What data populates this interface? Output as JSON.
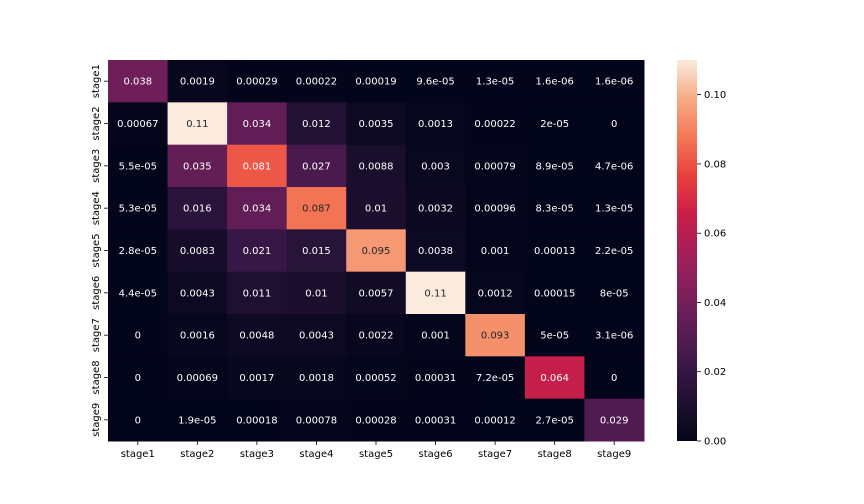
{
  "chart_data": {
    "type": "heatmap",
    "title": "",
    "xlabel": "",
    "ylabel": "",
    "x_labels": [
      "stage1",
      "stage2",
      "stage3",
      "stage4",
      "stage5",
      "stage6",
      "stage7",
      "stage8",
      "stage9"
    ],
    "y_labels": [
      "stage1",
      "stage2",
      "stage3",
      "stage4",
      "stage5",
      "stage6",
      "stage7",
      "stage8",
      "stage9"
    ],
    "values": [
      [
        0.038,
        0.0019,
        0.00029,
        0.00022,
        0.00019,
        9.6e-05,
        1.3e-05,
        1.6e-06,
        1.6e-06
      ],
      [
        0.00067,
        0.11,
        0.034,
        0.012,
        0.0035,
        0.0013,
        0.00022,
        2e-05,
        0
      ],
      [
        5.5e-05,
        0.035,
        0.081,
        0.027,
        0.0088,
        0.003,
        0.00079,
        8.9e-05,
        4.7e-06
      ],
      [
        5.3e-05,
        0.016,
        0.034,
        0.087,
        0.01,
        0.0032,
        0.00096,
        8.3e-05,
        1.3e-05
      ],
      [
        2.8e-05,
        0.0083,
        0.021,
        0.015,
        0.095,
        0.0038,
        0.001,
        0.00013,
        2.2e-05
      ],
      [
        4.4e-05,
        0.0043,
        0.011,
        0.01,
        0.0057,
        0.11,
        0.0012,
        0.00015,
        8e-05
      ],
      [
        0,
        0.0016,
        0.0048,
        0.0043,
        0.0022,
        0.001,
        0.093,
        5e-05,
        3.1e-06
      ],
      [
        0,
        0.00069,
        0.0017,
        0.0018,
        0.00052,
        0.00031,
        7.2e-05,
        0.064,
        0
      ],
      [
        0,
        1.9e-05,
        0.00018,
        0.00078,
        0.00028,
        0.00031,
        0.00012,
        2.7e-05,
        0.029
      ]
    ],
    "labels": [
      [
        "0.038",
        "0.0019",
        "0.00029",
        "0.00022",
        "0.00019",
        "9.6e-05",
        "1.3e-05",
        "1.6e-06",
        "1.6e-06"
      ],
      [
        "0.00067",
        "0.11",
        "0.034",
        "0.012",
        "0.0035",
        "0.0013",
        "0.00022",
        "2e-05",
        "0"
      ],
      [
        "5.5e-05",
        "0.035",
        "0.081",
        "0.027",
        "0.0088",
        "0.003",
        "0.00079",
        "8.9e-05",
        "4.7e-06"
      ],
      [
        "5.3e-05",
        "0.016",
        "0.034",
        "0.087",
        "0.01",
        "0.0032",
        "0.00096",
        "8.3e-05",
        "1.3e-05"
      ],
      [
        "2.8e-05",
        "0.0083",
        "0.021",
        "0.015",
        "0.095",
        "0.0038",
        "0.001",
        "0.00013",
        "2.2e-05"
      ],
      [
        "4.4e-05",
        "0.0043",
        "0.011",
        "0.01",
        "0.0057",
        "0.11",
        "0.0012",
        "0.00015",
        "8e-05"
      ],
      [
        "0",
        "0.0016",
        "0.0048",
        "0.0043",
        "0.0022",
        "0.001",
        "0.093",
        "5e-05",
        "3.1e-06"
      ],
      [
        "0",
        "0.00069",
        "0.0017",
        "0.0018",
        "0.00052",
        "0.00031",
        "7.2e-05",
        "0.064",
        "0"
      ],
      [
        "0",
        "1.9e-05",
        "0.00018",
        "0.00078",
        "0.00028",
        "0.00031",
        "0.00012",
        "2.7e-05",
        "0.029"
      ]
    ],
    "vmin": 0,
    "vmax": 0.11,
    "colormap": "rocket",
    "colorbar": {
      "ticks": [
        0.0,
        0.02,
        0.04,
        0.06,
        0.08,
        0.1
      ],
      "tick_labels": [
        "0.00",
        "0.02",
        "0.04",
        "0.06",
        "0.08",
        "0.10"
      ]
    },
    "grid": false,
    "legend": "colorbar-right"
  }
}
